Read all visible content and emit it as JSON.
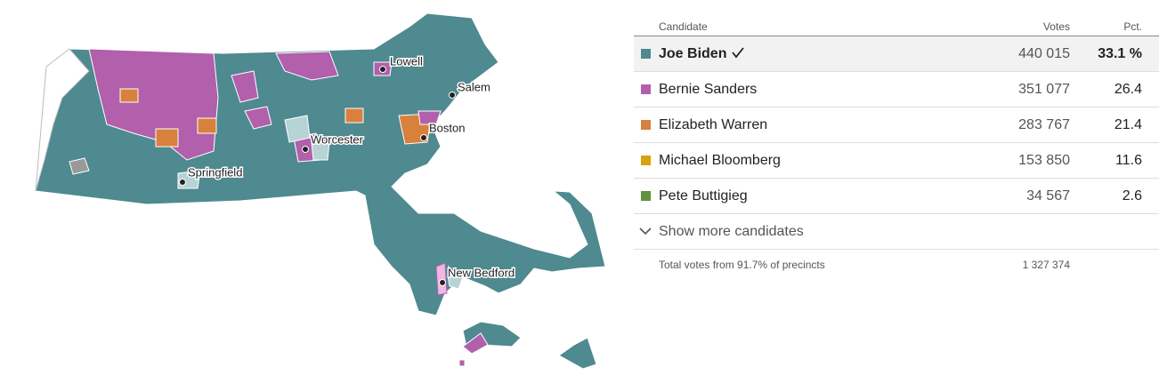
{
  "map": {
    "cities": [
      {
        "name": "Lowell"
      },
      {
        "name": "Salem"
      },
      {
        "name": "Boston"
      },
      {
        "name": "Worcester"
      },
      {
        "name": "Springfield"
      },
      {
        "name": "New Bedford"
      }
    ]
  },
  "table": {
    "headers": {
      "candidate": "Candidate",
      "votes": "Votes",
      "pct": "Pct."
    },
    "rows": [
      {
        "name": "Joe Biden",
        "color": "#4e8a90",
        "votes": "440 015",
        "pct": "33.1 %",
        "winner": true
      },
      {
        "name": "Bernie Sanders",
        "color": "#b25fac",
        "votes": "351 077",
        "pct": "26.4"
      },
      {
        "name": "Elizabeth Warren",
        "color": "#d8813c",
        "votes": "283 767",
        "pct": "21.4"
      },
      {
        "name": "Michael Bloomberg",
        "color": "#d9a20a",
        "votes": "153 850",
        "pct": "11.6"
      },
      {
        "name": "Pete Buttigieg",
        "color": "#62923f",
        "votes": "34 567",
        "pct": "2.6"
      }
    ],
    "show_more": "Show more candidates",
    "footer": {
      "text": "Total votes from 91.7% of precincts",
      "total": "1 327 374"
    }
  }
}
